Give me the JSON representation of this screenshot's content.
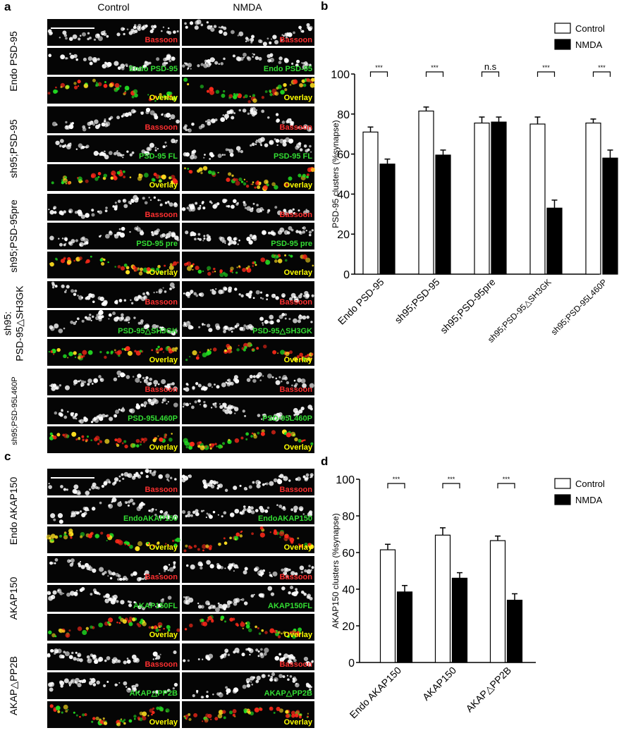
{
  "image_panels": [
    {
      "letter": "a",
      "columns": [
        "Control",
        "NMDA"
      ],
      "groups": [
        {
          "label": [
            "Endo PSD-95"
          ],
          "rows": [
            [
              "Bassoon",
              "Bassoon"
            ],
            [
              "Endo PSD-95",
              "Endo PSD-95"
            ],
            [
              "Overlay",
              "Overlay"
            ]
          ]
        },
        {
          "label": [
            "sh95;PSD-95"
          ],
          "rows": [
            [
              "Bassoon",
              "Bassoon"
            ],
            [
              "PSD-95 FL",
              "PSD-95 FL"
            ],
            [
              "Overlay",
              "Overlay"
            ]
          ]
        },
        {
          "label": [
            "sh95;PSD-95pre"
          ],
          "rows": [
            [
              "Bassoon",
              "Bassoon"
            ],
            [
              "PSD-95 pre",
              "PSD-95 pre"
            ],
            [
              "Overlay",
              "Overlay"
            ]
          ]
        },
        {
          "label": [
            "sh95:",
            "PSD-95△SH3GK"
          ],
          "rows": [
            [
              "Bassoon",
              "Bassoon"
            ],
            [
              "PSD-95△SH3GK",
              "PSD-95△SH3GK"
            ],
            [
              "Overlay",
              "Overlay"
            ]
          ]
        },
        {
          "label": [
            "sh95;PSD-95L460P"
          ],
          "rows": [
            [
              "Bassoon",
              "Bassoon"
            ],
            [
              "PSD-95L460P",
              "PSD-95L460P"
            ],
            [
              "Overlay",
              "Overlay"
            ]
          ]
        }
      ]
    },
    {
      "letter": "c",
      "columns": [],
      "groups": [
        {
          "label": [
            "Endo AKAP150"
          ],
          "rows": [
            [
              "Bassoon",
              "Bassoon"
            ],
            [
              "EndoAKAP150",
              "EndoAKAP150"
            ],
            [
              "Overlay",
              "Overlay"
            ]
          ]
        },
        {
          "label": [
            "AKAP150"
          ],
          "rows": [
            [
              "Bassoon",
              "Bassoon"
            ],
            [
              "AKAP150FL",
              "AKAP150FL"
            ],
            [
              "Overlay",
              "Overlay"
            ]
          ]
        },
        {
          "label": [
            "AKAP△PP2B"
          ],
          "rows": [
            [
              "Bassoon",
              "Bassoon"
            ],
            [
              "AKAP△PP2B",
              "AKAP△PP2B"
            ],
            [
              "Overlay",
              "Overlay"
            ]
          ]
        }
      ]
    }
  ],
  "chart_data": [
    {
      "type": "bar",
      "panel": "b",
      "y_label": "PSD-95 clusters (%synapse)",
      "categories": [
        "Endo PSD-95",
        "sh95;PSD-95",
        "sh95;PSD-95pre",
        "sh95;PSD-95△SH3GK",
        "sh95;PSD-95L460P"
      ],
      "series": [
        {
          "name": "Control",
          "color": "#ffffff",
          "values": [
            71,
            81.5,
            75.5,
            75,
            75.5
          ],
          "errors": [
            2.5,
            2,
            3,
            3.5,
            2
          ]
        },
        {
          "name": "NMDA",
          "color": "#000000",
          "values": [
            55,
            59.5,
            76,
            33,
            58
          ],
          "errors": [
            2.5,
            2.5,
            2.5,
            4,
            4
          ]
        }
      ],
      "annotations": [
        "***",
        "***",
        "n.s",
        "***",
        "***"
      ],
      "ylim": [
        0,
        100
      ],
      "yticks": [
        0,
        20,
        40,
        60,
        80,
        100
      ],
      "legend": "top-right"
    },
    {
      "type": "bar",
      "panel": "d",
      "y_label": "AKAP150 clusters (%synapse)",
      "categories": [
        "Endo AKAP150",
        "AKAP150",
        "AKAP△PP2B"
      ],
      "series": [
        {
          "name": "Control",
          "color": "#ffffff",
          "values": [
            61.5,
            69.5,
            66.5
          ],
          "errors": [
            3,
            4,
            2.5
          ]
        },
        {
          "name": "NMDA",
          "color": "#000000",
          "values": [
            38.5,
            46,
            34
          ],
          "errors": [
            3.5,
            3,
            3.5
          ]
        }
      ],
      "annotations": [
        "***",
        "***",
        "***"
      ],
      "ylim": [
        0,
        100
      ],
      "yticks": [
        0,
        20,
        40,
        60,
        80,
        100
      ],
      "legend": "top-right"
    }
  ]
}
